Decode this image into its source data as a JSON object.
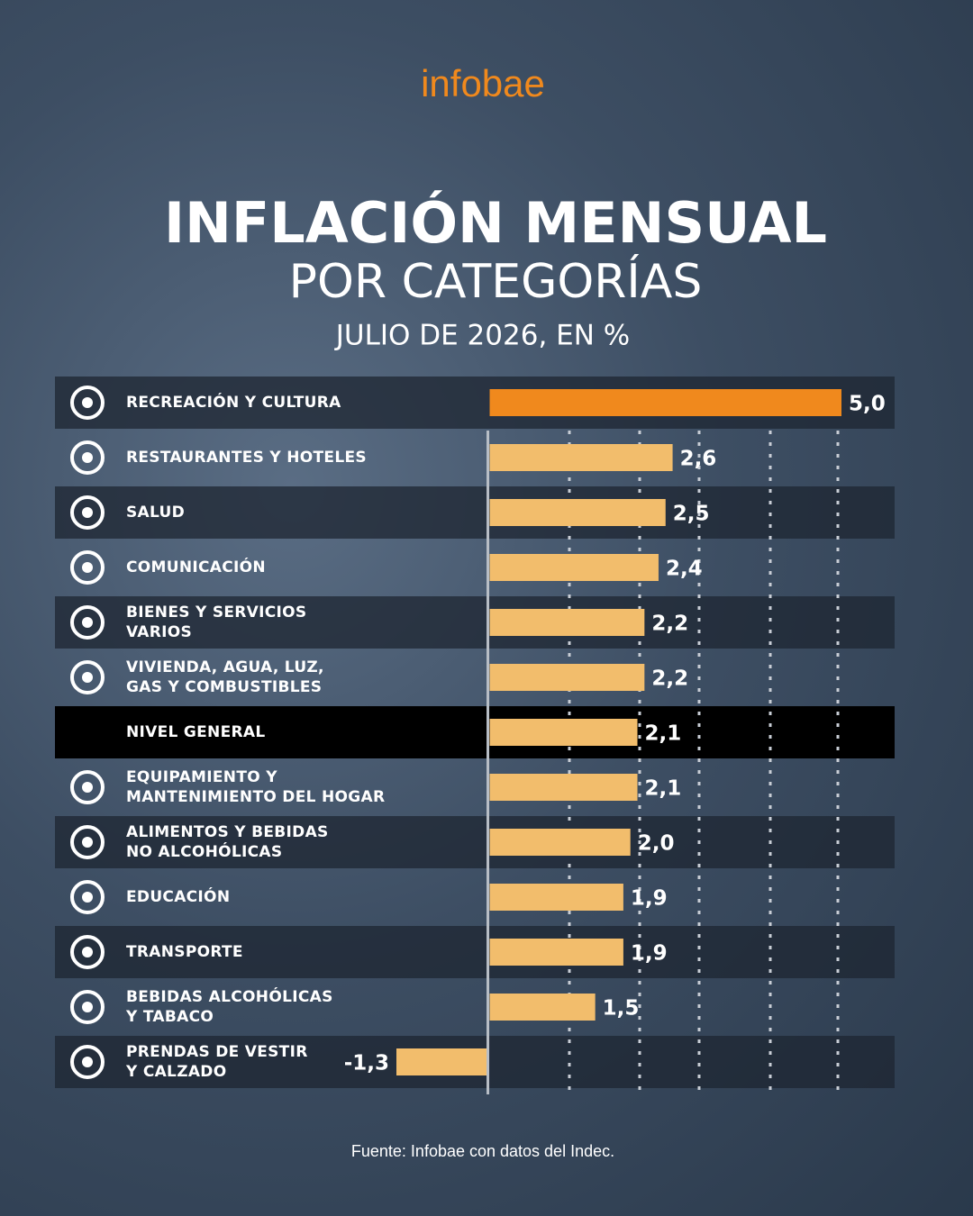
{
  "brand": "infobae",
  "chart_data": {
    "type": "hbar",
    "title": "INFLACIÓN MENSUAL",
    "subtitle": "POR CATEGORÍAS",
    "note": "JULIO DE 2026, EN %",
    "source": "Fuente: Infobae con datos del Indec.",
    "categories": [
      "RECREACIÓN Y CULTURA",
      "RESTAURANTES Y HOTELES",
      "SALUD",
      "COMUNICACIÓN",
      "BIENES Y SERVICIOS\nVARIOS",
      "VIVIENDA, AGUA, LUZ,\nGAS Y COMBUSTIBLES",
      "NIVEL GENERAL",
      "EQUIPAMIENTO Y\nMANTENIMIENTO DEL HOGAR",
      "ALIMENTOS Y BEBIDAS\nNO ALCOHÓLICAS",
      "EDUCACIÓN",
      "TRANSPORTE",
      "BEBIDAS ALCOHÓLICAS\nY TABACO",
      "PRENDAS DE VESTIR\nY CALZADO"
    ],
    "values": [
      5.0,
      2.6,
      2.5,
      2.4,
      2.2,
      2.2,
      2.1,
      2.1,
      2.0,
      1.9,
      1.9,
      1.5,
      -1.3
    ],
    "value_labels": [
      "5,0",
      "2,6",
      "2,5",
      "2,4",
      "2,2",
      "2,2",
      "2,1",
      "2,1",
      "2,0",
      "1,9",
      "1,9",
      "1,5",
      "-1,3"
    ],
    "colors": [
      "#f0891d",
      "#f2bd6c",
      "#f2bd6c",
      "#f2bd6c",
      "#f2bd6c",
      "#f2bd6c",
      "#f2bd6c",
      "#f2bd6c",
      "#f2bd6c",
      "#f2bd6c",
      "#f2bd6c",
      "#f2bd6c",
      "#f2bd6c"
    ],
    "xlim": [
      -1.3,
      5.0
    ]
  }
}
